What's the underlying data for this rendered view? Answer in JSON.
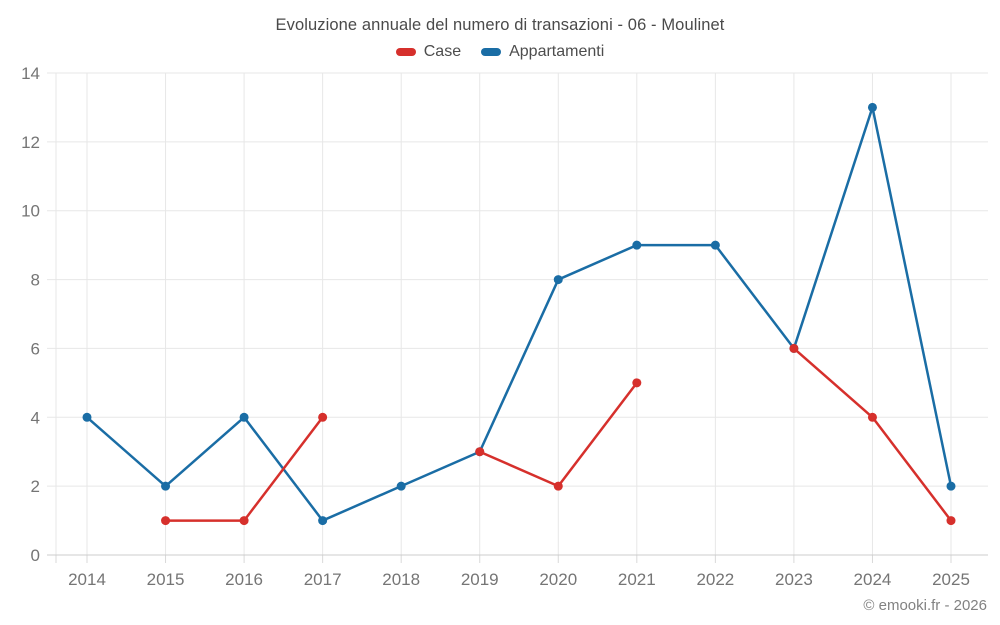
{
  "chart_data": {
    "type": "line",
    "title": "Evoluzione annuale del numero di transazioni - 06 - Moulinet",
    "categories": [
      "2014",
      "2015",
      "2016",
      "2017",
      "2018",
      "2019",
      "2020",
      "2021",
      "2022",
      "2023",
      "2024",
      "2025"
    ],
    "series": [
      {
        "name": "Case",
        "color": "#d6302c",
        "values": [
          null,
          1,
          1,
          4,
          null,
          3,
          2,
          5,
          null,
          6,
          4,
          1
        ]
      },
      {
        "name": "Appartamenti",
        "color": "#1a6da5",
        "values": [
          4,
          2,
          4,
          1,
          2,
          3,
          8,
          9,
          9,
          6,
          13,
          2
        ]
      }
    ],
    "ylim": [
      0,
      14
    ],
    "yticks": [
      0,
      2,
      4,
      6,
      8,
      10,
      12,
      14
    ],
    "grid": true,
    "legend_position": "top",
    "marker": "circle"
  },
  "style": {
    "background": "#ffffff",
    "title_color": "#4a4a4a",
    "legend_text_color": "#4d4d4d",
    "axis_label_color": "#757575",
    "grid_color": "#e7e7e7",
    "axis_line_color": "#cccccc",
    "tick_color": "#d9d9d9"
  },
  "footer": {
    "copyright": "© emooki.fr - 2026"
  }
}
